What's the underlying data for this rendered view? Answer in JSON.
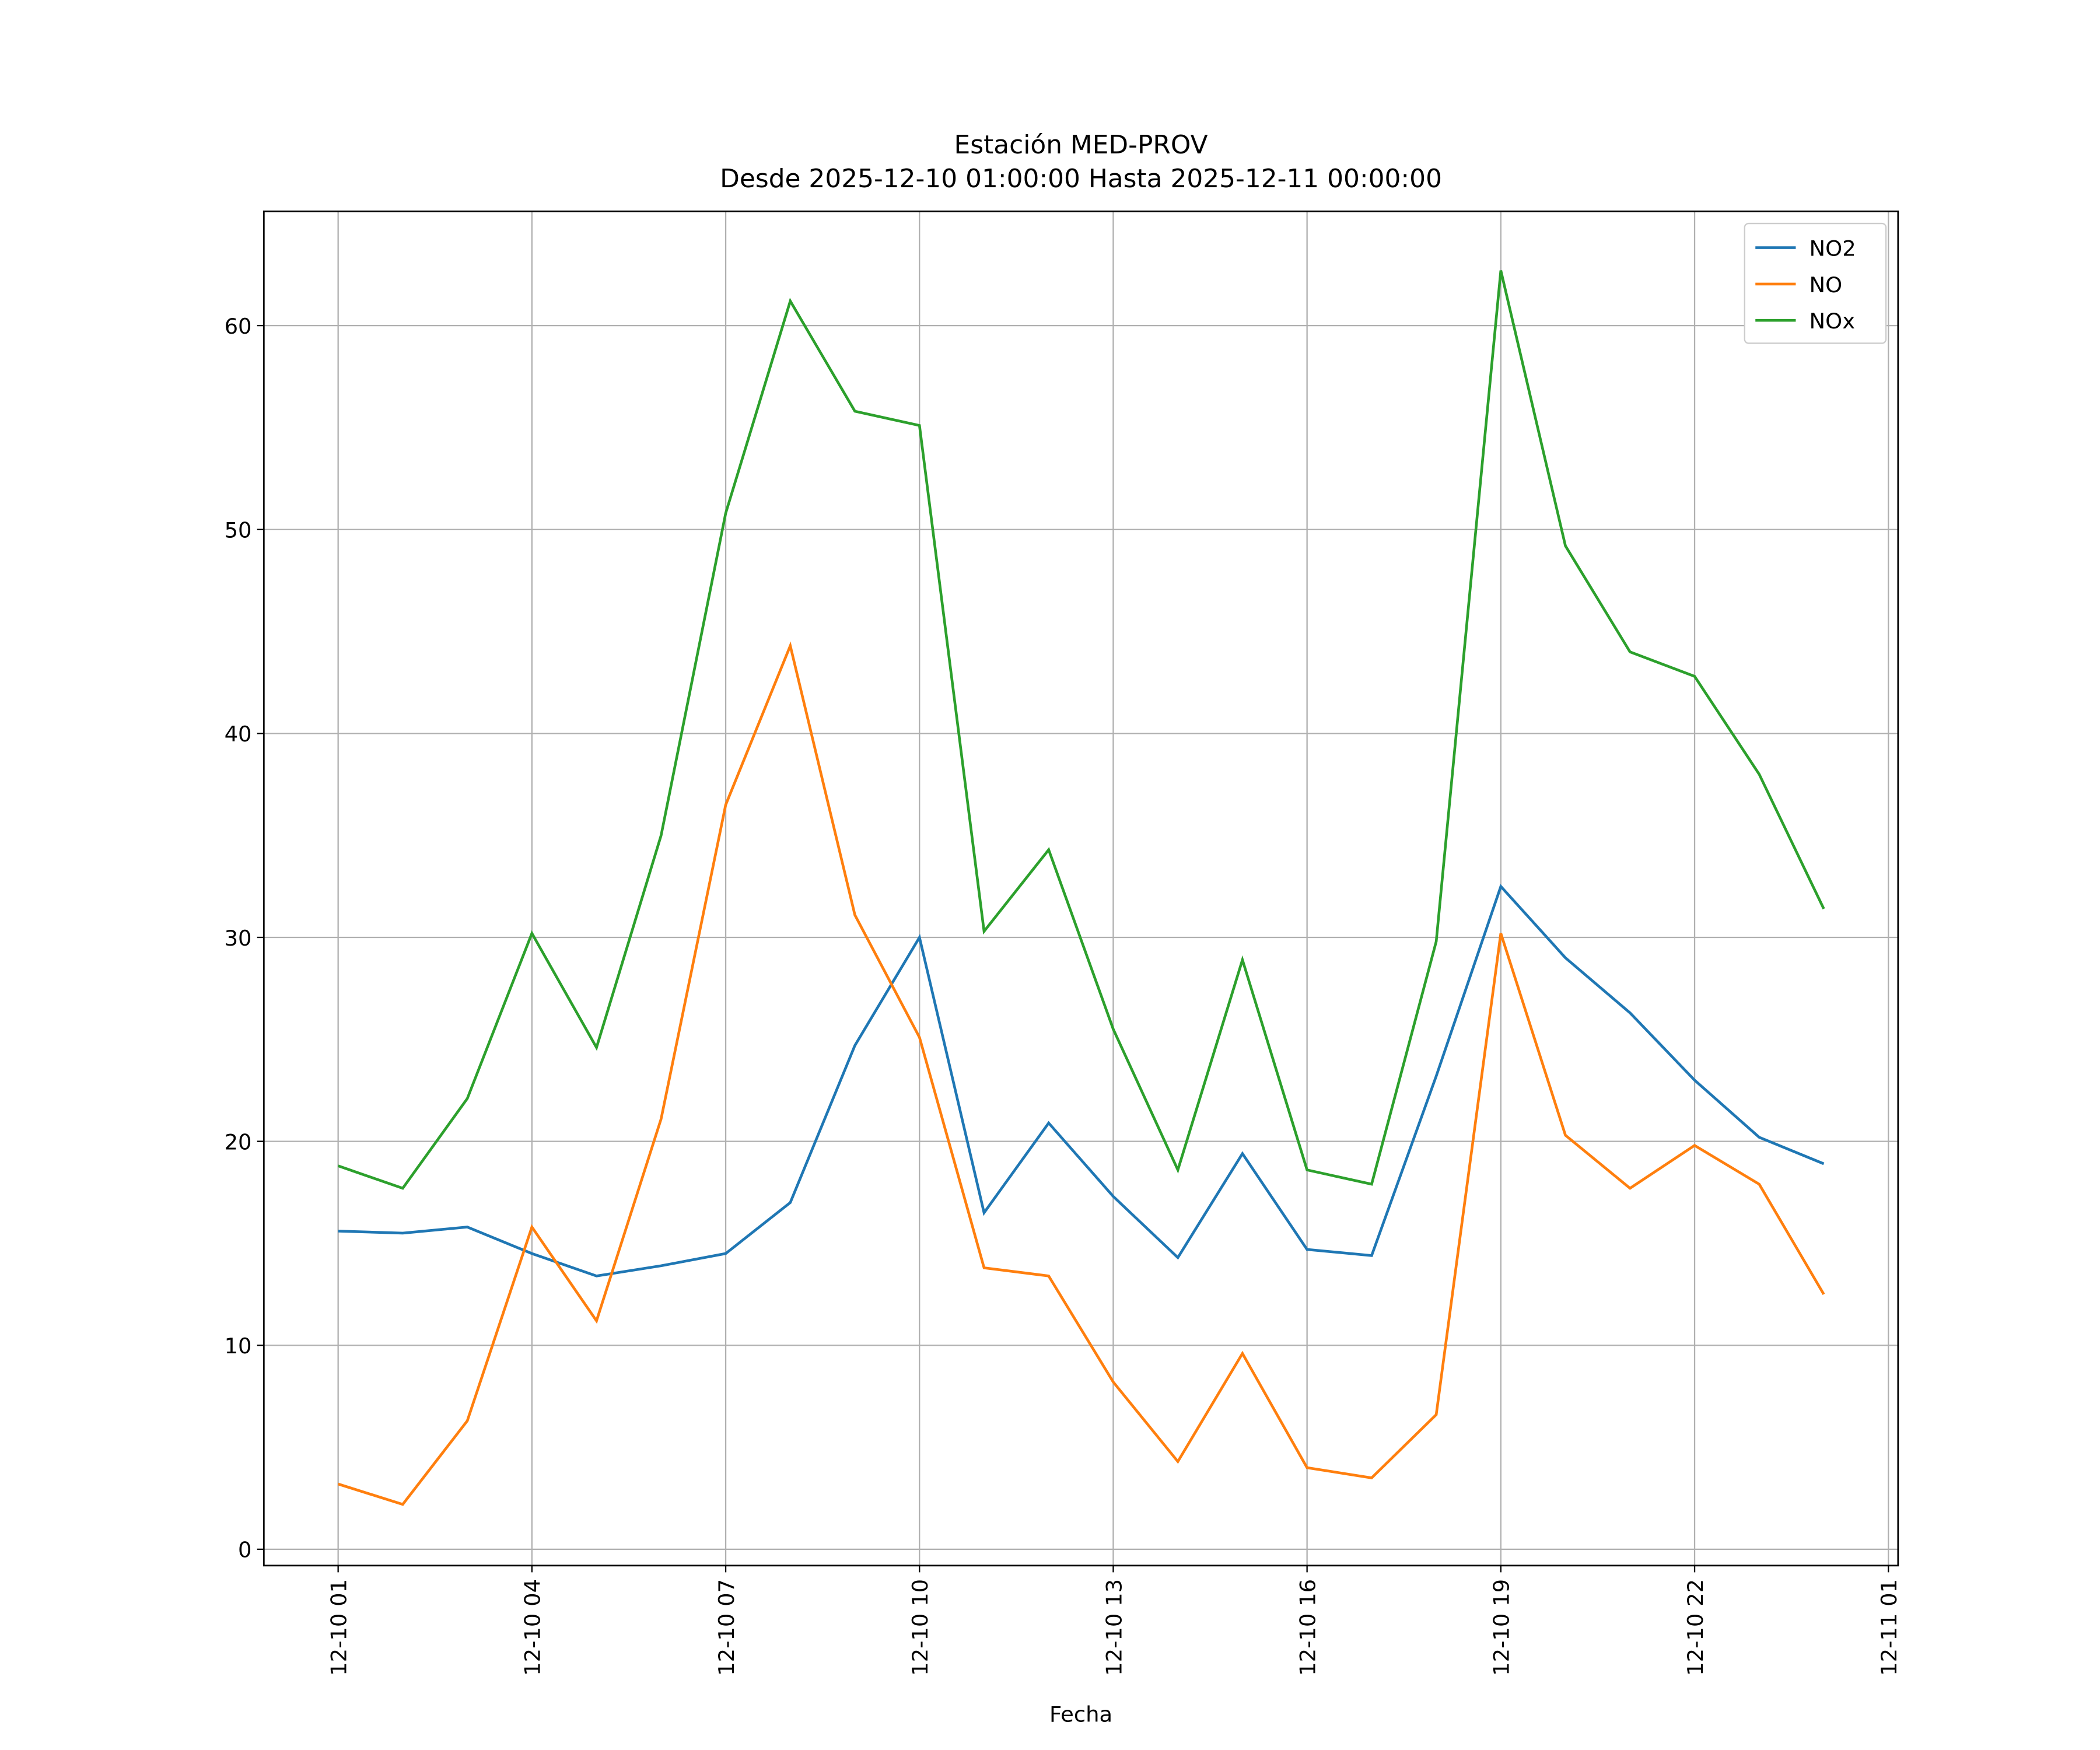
{
  "chart_data": {
    "type": "line",
    "title": [
      "Estación MED-PROV",
      "Desde 2025-12-10 01:00:00 Hasta 2025-12-11 00:00:00"
    ],
    "x_label": "Fecha",
    "x": [
      "12-10 01",
      "12-10 02",
      "12-10 03",
      "12-10 04",
      "12-10 05",
      "12-10 06",
      "12-10 07",
      "12-10 08",
      "12-10 09",
      "12-10 10",
      "12-10 11",
      "12-10 12",
      "12-10 13",
      "12-10 14",
      "12-10 15",
      "12-10 16",
      "12-10 17",
      "12-10 18",
      "12-10 19",
      "12-10 20",
      "12-10 21",
      "12-10 22",
      "12-10 23",
      "12-11 00"
    ],
    "series": [
      {
        "name": "NO2",
        "color": "#1f77b4",
        "values": [
          15.6,
          15.5,
          15.8,
          14.5,
          13.4,
          13.9,
          14.5,
          17.0,
          24.7,
          30.0,
          16.5,
          20.9,
          17.3,
          14.3,
          19.4,
          14.7,
          14.4,
          23.2,
          32.5,
          29.0,
          26.3,
          23.0,
          20.2,
          18.9
        ]
      },
      {
        "name": "NO",
        "color": "#ff7f0e",
        "values": [
          3.2,
          2.2,
          6.3,
          15.8,
          11.2,
          21.1,
          36.5,
          44.3,
          31.1,
          25.1,
          13.8,
          13.4,
          8.2,
          4.3,
          9.6,
          4.0,
          3.5,
          6.6,
          30.2,
          20.3,
          17.7,
          19.8,
          17.9,
          12.5
        ]
      },
      {
        "name": "NOx",
        "color": "#2ca02c",
        "values": [
          18.8,
          17.7,
          22.1,
          30.2,
          24.6,
          35.0,
          50.8,
          61.2,
          55.8,
          55.1,
          30.3,
          34.3,
          25.5,
          18.6,
          28.9,
          18.6,
          17.9,
          29.8,
          62.7,
          49.2,
          44.0,
          42.8,
          38.0,
          31.4
        ]
      }
    ],
    "xlim": [
      "12-09 23:51",
      "12-11 01:09"
    ],
    "xticks": [
      "12-10 01",
      "12-10 04",
      "12-10 07",
      "12-10 10",
      "12-10 13",
      "12-10 16",
      "12-10 19",
      "12-10 22",
      "12-11 01"
    ],
    "ylim": [
      -0.8,
      65.6
    ],
    "yticks": [
      0,
      10,
      20,
      30,
      40,
      50,
      60
    ],
    "grid": true,
    "legend": "upper right"
  }
}
